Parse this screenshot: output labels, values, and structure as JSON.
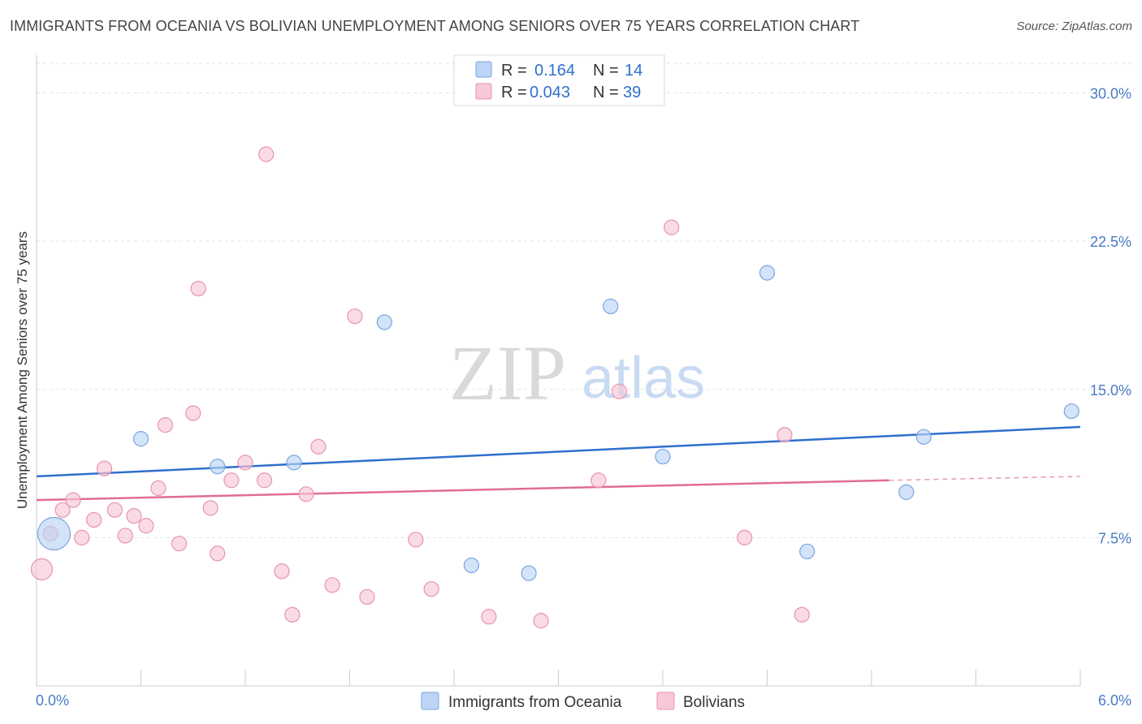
{
  "chart_data": {
    "type": "scatter",
    "title": "IMMIGRANTS FROM OCEANIA VS BOLIVIAN UNEMPLOYMENT AMONG SENIORS OVER 75 YEARS CORRELATION CHART",
    "source": "Source: ZipAtlas.com",
    "ylabel": "Unemployment Among Seniors over 75 years",
    "xlim": [
      0,
      6
    ],
    "ylim": [
      0,
      31.5
    ],
    "x_tick_labels": {
      "min": "0.0%",
      "max": "6.0%"
    },
    "y_ticks": [
      {
        "value": 7.5,
        "label": "7.5%"
      },
      {
        "value": 15.0,
        "label": "15.0%"
      },
      {
        "value": 22.5,
        "label": "22.5%"
      },
      {
        "value": 30.0,
        "label": "30.0%"
      }
    ],
    "legend": {
      "rows": [
        {
          "r_label": "R =",
          "r_value": "0.164",
          "n_label": "N =",
          "n_value": "14"
        },
        {
          "r_label": "R =",
          "r_value": "0.043",
          "n_label": "N =",
          "n_value": "39"
        }
      ]
    },
    "watermark": {
      "zip": "ZIP",
      "atlas": "atlas"
    },
    "series": [
      {
        "name": "Immigrants from Oceania",
        "fill": "#bcd4f5",
        "stroke": "#7aa6e0",
        "line_color": "#2f6fcc",
        "trend": {
          "x0": 0.0,
          "y0": 10.6,
          "x1": 6.0,
          "y1": 13.1
        },
        "points": [
          {
            "x": 0.1,
            "y": 7.7,
            "size": 3
          },
          {
            "x": 0.6,
            "y": 12.5,
            "size": 1
          },
          {
            "x": 1.04,
            "y": 11.1,
            "size": 1
          },
          {
            "x": 1.48,
            "y": 11.3,
            "size": 1
          },
          {
            "x": 2.0,
            "y": 18.4,
            "size": 1
          },
          {
            "x": 2.5,
            "y": 6.1,
            "size": 1
          },
          {
            "x": 2.83,
            "y": 5.7,
            "size": 1
          },
          {
            "x": 3.3,
            "y": 19.2,
            "size": 1
          },
          {
            "x": 3.6,
            "y": 11.6,
            "size": 1
          },
          {
            "x": 4.2,
            "y": 20.9,
            "size": 1
          },
          {
            "x": 4.43,
            "y": 6.8,
            "size": 1
          },
          {
            "x": 5.0,
            "y": 9.8,
            "size": 1
          },
          {
            "x": 5.1,
            "y": 12.6,
            "size": 1
          },
          {
            "x": 5.95,
            "y": 13.9,
            "size": 1
          }
        ]
      },
      {
        "name": "Bolivians",
        "fill": "#f8c8d7",
        "stroke": "#e893ae",
        "line_color": "#e06d93",
        "trend": {
          "x0": 0.0,
          "y0": 9.4,
          "x1": 4.9,
          "y1": 10.4,
          "dash_x1": 6.0,
          "dash_y1": 10.6
        },
        "points": [
          {
            "x": 0.03,
            "y": 5.9,
            "size": 2
          },
          {
            "x": 0.08,
            "y": 7.7,
            "size": 1
          },
          {
            "x": 0.15,
            "y": 8.9,
            "size": 1
          },
          {
            "x": 0.21,
            "y": 9.4,
            "size": 1
          },
          {
            "x": 0.26,
            "y": 7.5,
            "size": 1
          },
          {
            "x": 0.33,
            "y": 8.4,
            "size": 1
          },
          {
            "x": 0.39,
            "y": 11.0,
            "size": 1
          },
          {
            "x": 0.45,
            "y": 8.9,
            "size": 1
          },
          {
            "x": 0.51,
            "y": 7.6,
            "size": 1
          },
          {
            "x": 0.56,
            "y": 8.6,
            "size": 1
          },
          {
            "x": 0.63,
            "y": 8.1,
            "size": 1
          },
          {
            "x": 0.7,
            "y": 10.0,
            "size": 1
          },
          {
            "x": 0.74,
            "y": 13.2,
            "size": 1
          },
          {
            "x": 0.82,
            "y": 7.2,
            "size": 1
          },
          {
            "x": 0.9,
            "y": 13.8,
            "size": 1
          },
          {
            "x": 0.93,
            "y": 20.1,
            "size": 1
          },
          {
            "x": 1.0,
            "y": 9.0,
            "size": 1
          },
          {
            "x": 1.04,
            "y": 6.7,
            "size": 1
          },
          {
            "x": 1.12,
            "y": 10.4,
            "size": 1
          },
          {
            "x": 1.2,
            "y": 11.3,
            "size": 1
          },
          {
            "x": 1.32,
            "y": 26.9,
            "size": 1
          },
          {
            "x": 1.31,
            "y": 10.4,
            "size": 1
          },
          {
            "x": 1.41,
            "y": 5.8,
            "size": 1
          },
          {
            "x": 1.47,
            "y": 3.6,
            "size": 1
          },
          {
            "x": 1.55,
            "y": 9.7,
            "size": 1
          },
          {
            "x": 1.62,
            "y": 12.1,
            "size": 1
          },
          {
            "x": 1.7,
            "y": 5.1,
            "size": 1
          },
          {
            "x": 1.83,
            "y": 18.7,
            "size": 1
          },
          {
            "x": 1.9,
            "y": 4.5,
            "size": 1
          },
          {
            "x": 2.18,
            "y": 7.4,
            "size": 1
          },
          {
            "x": 2.27,
            "y": 4.9,
            "size": 1
          },
          {
            "x": 2.6,
            "y": 3.5,
            "size": 1
          },
          {
            "x": 2.9,
            "y": 3.3,
            "size": 1
          },
          {
            "x": 3.23,
            "y": 10.4,
            "size": 1
          },
          {
            "x": 3.35,
            "y": 14.9,
            "size": 1
          },
          {
            "x": 3.65,
            "y": 23.2,
            "size": 1
          },
          {
            "x": 4.07,
            "y": 7.5,
            "size": 1
          },
          {
            "x": 4.3,
            "y": 12.7,
            "size": 1
          },
          {
            "x": 4.4,
            "y": 3.6,
            "size": 1
          }
        ]
      }
    ]
  }
}
